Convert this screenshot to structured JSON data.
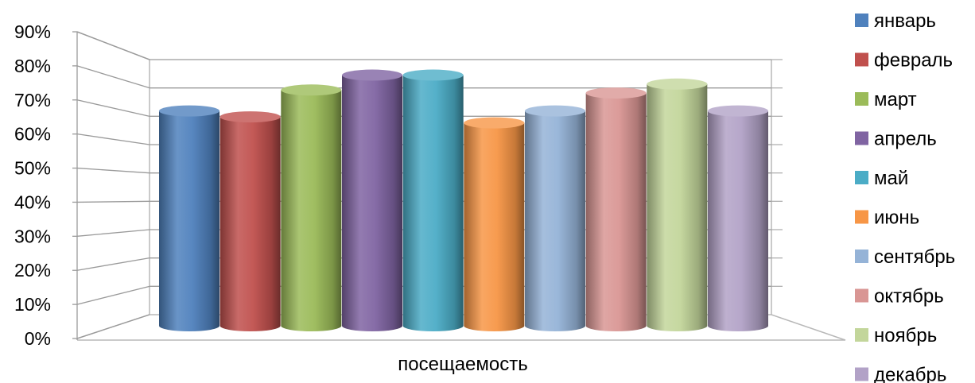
{
  "chart_data": {
    "type": "bar",
    "style": "3d-cylinder",
    "categories": [
      "посещаемость"
    ],
    "ylim": [
      0,
      90
    ],
    "y_ticks": [
      "0%",
      "10%",
      "20%",
      "30%",
      "40%",
      "50%",
      "60%",
      "70%",
      "80%",
      "90%"
    ],
    "grid": true,
    "legend_position": "right",
    "series": [
      {
        "name": "январь",
        "values": [
          72
        ],
        "color": "#4F81BD"
      },
      {
        "name": "февраль",
        "values": [
          70
        ],
        "color": "#C0504D"
      },
      {
        "name": "март",
        "values": [
          79
        ],
        "color": "#9BBB59"
      },
      {
        "name": "апрель",
        "values": [
          84
        ],
        "color": "#8064A2"
      },
      {
        "name": "май",
        "values": [
          84
        ],
        "color": "#4BACC6"
      },
      {
        "name": "июнь",
        "values": [
          68
        ],
        "color": "#F79646"
      },
      {
        "name": "сентябрь",
        "values": [
          72
        ],
        "color": "#95B3D7"
      },
      {
        "name": "октябрь",
        "values": [
          78
        ],
        "color": "#D99694"
      },
      {
        "name": "ноябрь",
        "values": [
          81
        ],
        "color": "#C3D69B"
      },
      {
        "name": "декабрь",
        "values": [
          72
        ],
        "color": "#B2A2C7"
      }
    ]
  }
}
